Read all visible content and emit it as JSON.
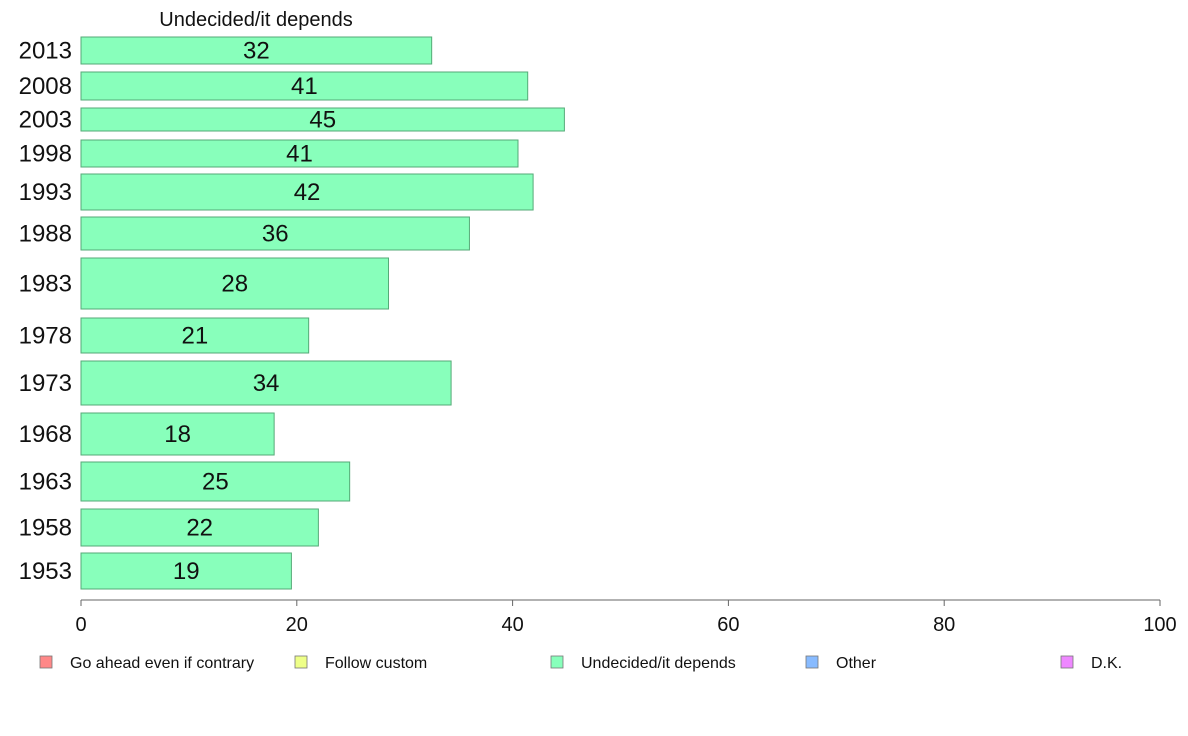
{
  "chart_data": {
    "type": "bar",
    "orientation": "horizontal",
    "title": "Undecided/it depends",
    "categories": [
      "2013",
      "2008",
      "2003",
      "1998",
      "1993",
      "1988",
      "1983",
      "1978",
      "1973",
      "1968",
      "1963",
      "1958",
      "1953"
    ],
    "series": [
      {
        "name": "Undecided/it depends",
        "values": [
          32,
          41,
          45,
          41,
          42,
          36,
          28,
          21,
          34,
          18,
          25,
          22,
          19
        ]
      }
    ],
    "bar_lengths": [
      32.5,
      41.4,
      44.8,
      40.5,
      41.9,
      36.0,
      28.5,
      21.1,
      34.3,
      17.9,
      24.9,
      22.0,
      19.5
    ],
    "xlim": [
      0,
      100
    ],
    "xticks": [
      0,
      20,
      40,
      60,
      80,
      100
    ],
    "grid": false,
    "bar_color": "#88ffbb",
    "legend": {
      "placement": "bottom",
      "items": [
        {
          "label": "Go ahead even if contrary",
          "color": "#ff8888"
        },
        {
          "label": "Follow custom",
          "color": "#eeff88"
        },
        {
          "label": "Undecided/it depends",
          "color": "#88ffbb"
        },
        {
          "label": "Other",
          "color": "#88bbff"
        },
        {
          "label": "D.K.",
          "color": "#ee88ff"
        }
      ]
    }
  }
}
